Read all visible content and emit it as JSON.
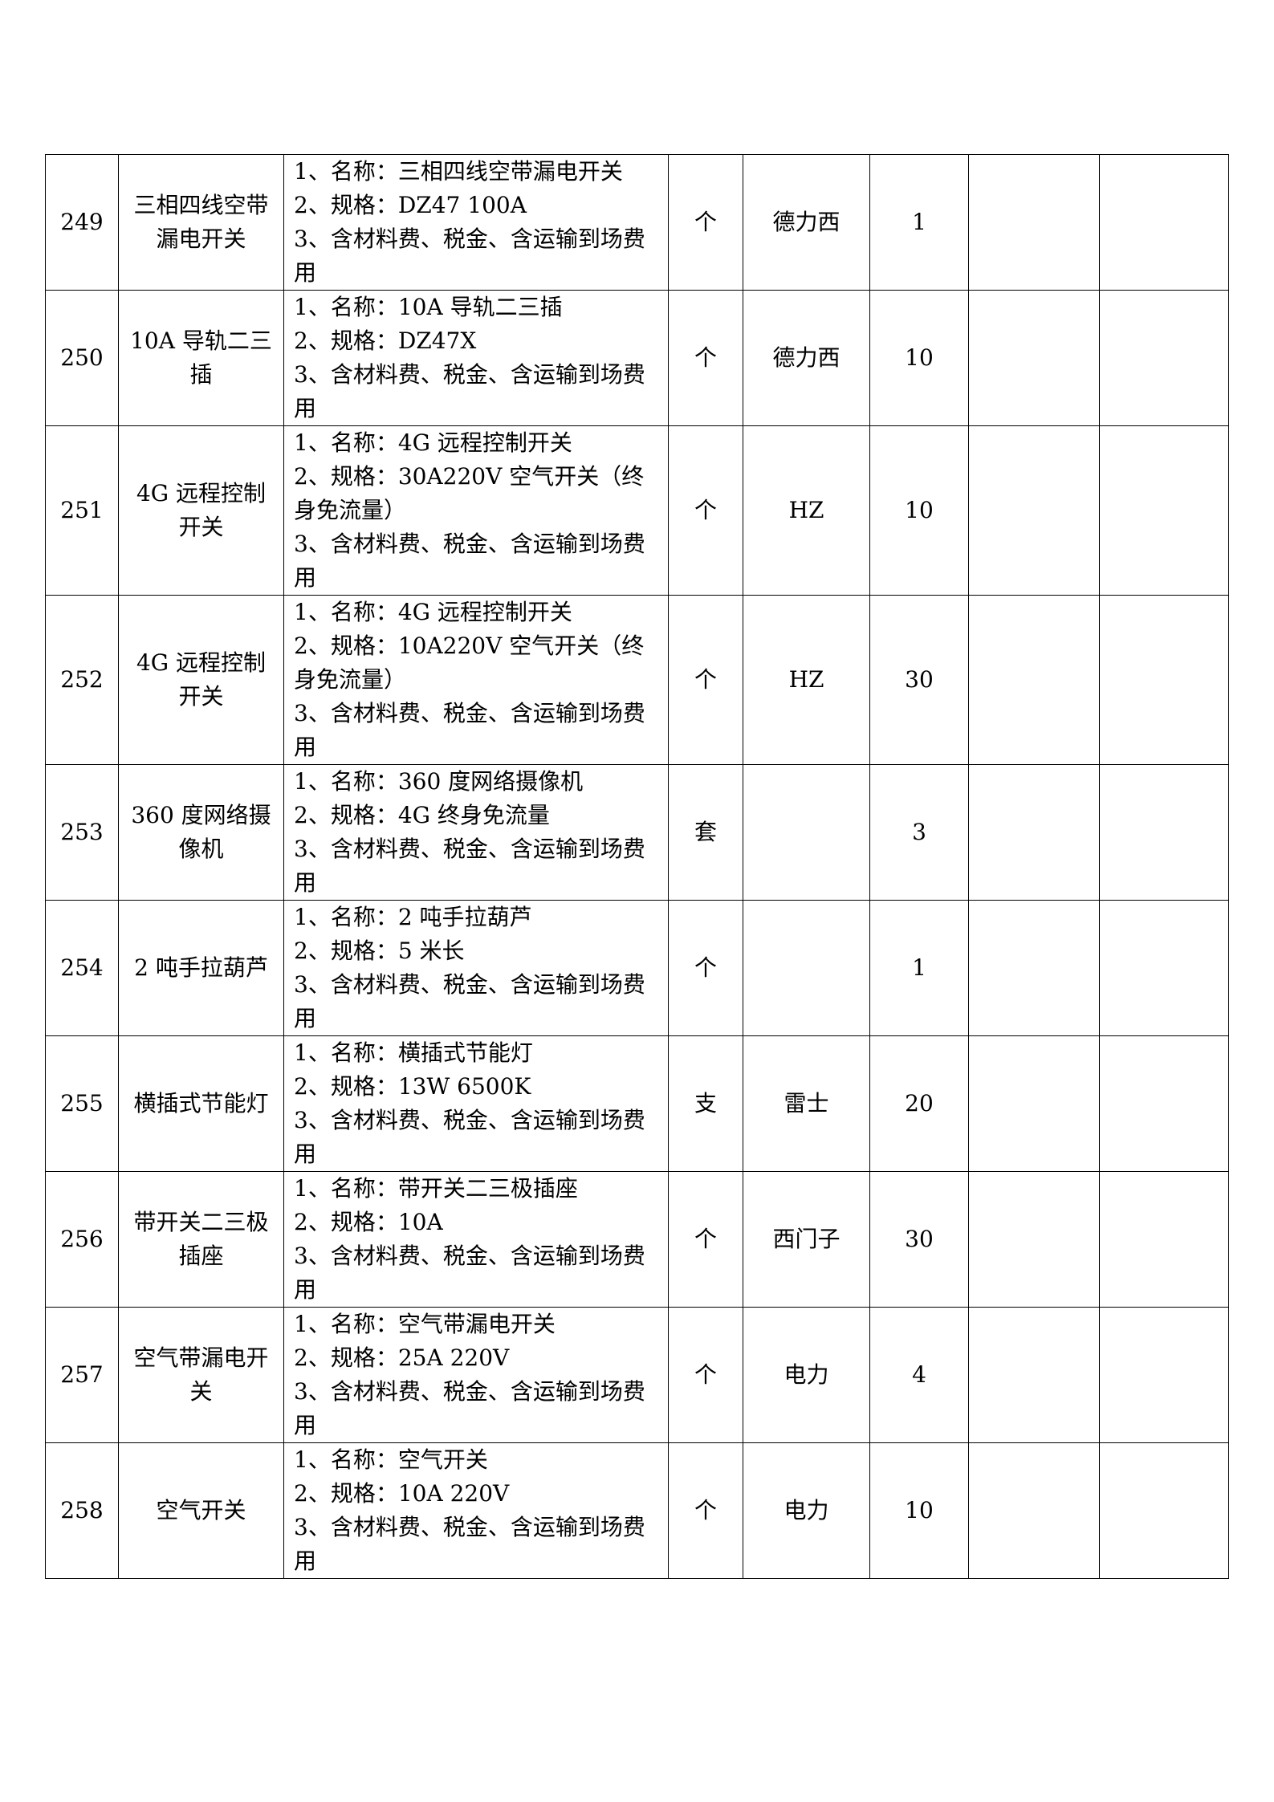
{
  "rows": [
    {
      "no": "249",
      "name": "三相四线空带漏电开关",
      "desc": [
        "1、名称：三相四线空带漏电开关",
        "2、规格：DZ47  100A",
        "3、含材料费、税金、含运输到场费用"
      ],
      "unit": "个",
      "brand": "德力西",
      "qty": "1",
      "price": "",
      "total": ""
    },
    {
      "no": "250",
      "name": "10A 导轨二三插",
      "desc": [
        "1、名称：10A 导轨二三插",
        "2、规格：DZ47X",
        "3、含材料费、税金、含运输到场费用"
      ],
      "unit": "个",
      "brand": "德力西",
      "qty": "10",
      "price": "",
      "total": ""
    },
    {
      "no": "251",
      "name": "4G 远程控制开关",
      "desc": [
        "1、名称：4G 远程控制开关",
        "2、规格：30A220V 空气开关（终身免流量）",
        "3、含材料费、税金、含运输到场费用"
      ],
      "unit": "个",
      "brand": "HZ",
      "qty": "10",
      "price": "",
      "total": ""
    },
    {
      "no": "252",
      "name": "4G 远程控制开关",
      "desc": [
        "1、名称：4G 远程控制开关",
        "2、规格：10A220V 空气开关（终身免流量）",
        "3、含材料费、税金、含运输到场费用"
      ],
      "unit": "个",
      "brand": "HZ",
      "qty": "30",
      "price": "",
      "total": ""
    },
    {
      "no": "253",
      "name": "360 度网络摄像机",
      "desc": [
        "1、名称：360 度网络摄像机",
        "2、规格：4G 终身免流量",
        "3、含材料费、税金、含运输到场费用"
      ],
      "unit": "套",
      "brand": "",
      "qty": "3",
      "price": "",
      "total": ""
    },
    {
      "no": "254",
      "name": "2 吨手拉葫芦",
      "desc": [
        "1、名称：2 吨手拉葫芦",
        "2、规格：5 米长",
        "3、含材料费、税金、含运输到场费用"
      ],
      "unit": "个",
      "brand": "",
      "qty": "1",
      "price": "",
      "total": ""
    },
    {
      "no": "255",
      "name": "横插式节能灯",
      "desc": [
        "1、名称：横插式节能灯",
        "2、规格：13W 6500K",
        "3、含材料费、税金、含运输到场费用"
      ],
      "unit": "支",
      "brand": "雷士",
      "qty": "20",
      "price": "",
      "total": ""
    },
    {
      "no": "256",
      "name": "带开关二三极插座",
      "desc": [
        "1、名称：带开关二三极插座",
        "2、规格：10A",
        "3、含材料费、税金、含运输到场费用"
      ],
      "unit": "个",
      "brand": "西门子",
      "qty": "30",
      "price": "",
      "total": ""
    },
    {
      "no": "257",
      "name": "空气带漏电开关",
      "desc": [
        "1、名称：空气带漏电开关",
        "2、规格：25A 220V",
        "3、含材料费、税金、含运输到场费用"
      ],
      "unit": "个",
      "brand": "电力",
      "qty": "4",
      "price": "",
      "total": ""
    },
    {
      "no": "258",
      "name": "空气开关",
      "desc": [
        "1、名称：空气开关",
        "2、规格：10A 220V",
        "3、含材料费、税金、含运输到场费用"
      ],
      "unit": "个",
      "brand": "电力",
      "qty": "10",
      "price": "",
      "total": ""
    }
  ]
}
